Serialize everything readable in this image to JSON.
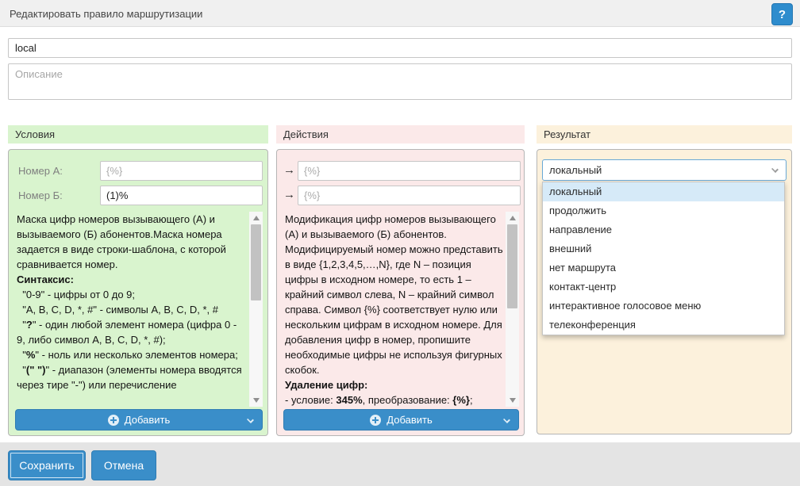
{
  "window": {
    "title": "Редактировать правило маршрутизации",
    "help_label": "?"
  },
  "form": {
    "name_value": "local",
    "description_placeholder": "Описание"
  },
  "conditions": {
    "header": "Условия",
    "rows": [
      {
        "label": "Номер А:",
        "placeholder": "{%}",
        "value": ""
      },
      {
        "label": "Номер Б:",
        "placeholder": "{%}",
        "value": "(1)%"
      }
    ],
    "help_segments": [
      {
        "t": "Маска цифр номеров вызывающего (А) и вызываемого (Б) абонентов.Маска номера задается в виде строки-шаблона, с которой сравнивается номер.\n",
        "b": false
      },
      {
        "t": "Синтаксис:",
        "b": true
      },
      {
        "t": "\n  \"0-9\" - цифры от 0 до 9;\n  \"A, B, C, D, *, #\" - символы A, B, C, D, *, #\n  \"",
        "b": false
      },
      {
        "t": "?",
        "b": true
      },
      {
        "t": "\" - один любой элемент номера (цифра 0 - 9, либо символ A, B, C, D, *, #);\n  \"",
        "b": false
      },
      {
        "t": "%",
        "b": true
      },
      {
        "t": "\" - ноль или несколько элементов номера;\n  \"",
        "b": false
      },
      {
        "t": "(\" \")",
        "b": true
      },
      {
        "t": "\" - диапазон (элементы номера вводятся через тире \"-\") или перечисление",
        "b": false
      }
    ],
    "add_label": "Добавить"
  },
  "actions": {
    "header": "Действия",
    "arrow": "→",
    "rows": [
      {
        "placeholder": "{%}",
        "value": ""
      },
      {
        "placeholder": "{%}",
        "value": ""
      }
    ],
    "help_segments": [
      {
        "t": "Модификация цифр номеров вызывающего (А) и вызываемого (Б) абонентов. Модифицируемый номер можно представить в виде {1,2,3,4,5,…,N}, где N – позиция цифры в исходном номере, то есть 1 – крайний символ слева, N – крайний символ справа. Символ {%} соответствует нулю или нескольким цифрам в исходном номере. Для добавления цифр в номер, пропишите необходимые цифры не используя фигурных скобок.\n",
        "b": false
      },
      {
        "t": "Удаление цифр:",
        "b": true
      },
      {
        "t": "\n- условие: ",
        "b": false
      },
      {
        "t": "345%",
        "b": true
      },
      {
        "t": ", преобразование: ",
        "b": false
      },
      {
        "t": "{%}",
        "b": true
      },
      {
        "t": ";",
        "b": false
      }
    ],
    "add_label": "Добавить"
  },
  "result": {
    "header": "Результат",
    "selected": "локальный",
    "selected_index": 0,
    "options": [
      "локальный",
      "продолжить",
      "направление",
      "внешний",
      "нет маршрута",
      "контакт-центр",
      "интерактивное голосовое меню",
      "телеконференция"
    ]
  },
  "footer": {
    "save_label": "Сохранить",
    "cancel_label": "Отмена"
  },
  "icons": {
    "help": "question-mark",
    "add": "plus-circle",
    "button_chevron": "chevron-down",
    "select_chevron": "chevron-down",
    "scroll_up": "triangle-up",
    "scroll_down": "triangle-down"
  },
  "colors": {
    "accent_blue": "#3a8ec9",
    "help_button_blue": "#2e8ccd",
    "conditions_green": "#d9f4ce",
    "actions_pink": "#fbe9e9",
    "result_cream": "#fcf1dc",
    "selected_option_blue": "#d6eaf8",
    "titlebar_gray": "#f0f0f0",
    "footer_gray": "#e4e4e4"
  }
}
